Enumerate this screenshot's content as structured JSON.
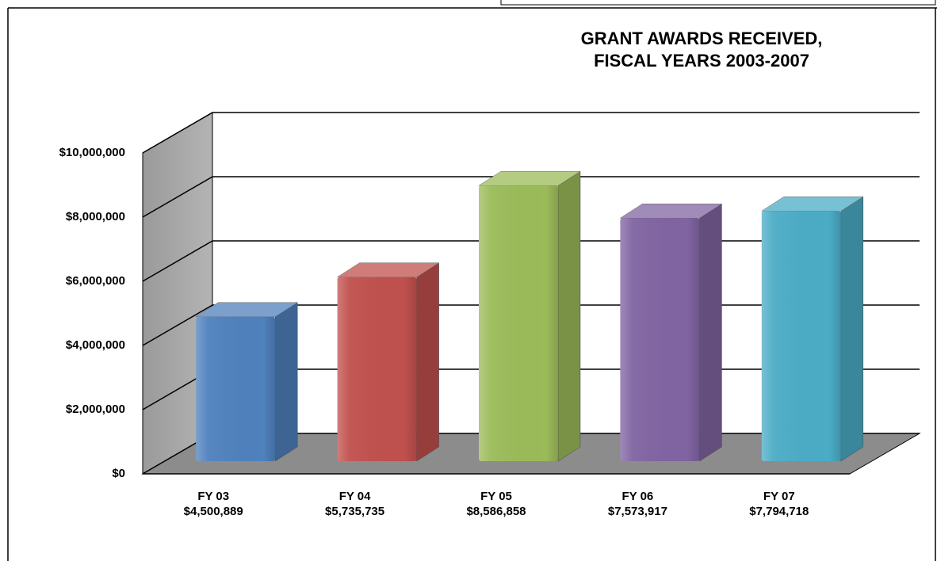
{
  "chart_data": {
    "type": "bar3d",
    "title": "GRANT AWARDS RECEIVED,",
    "subtitle": "FISCAL YEARS 2003-2007",
    "categories": [
      "FY 03",
      "FY 04",
      "FY 05",
      "FY 06",
      "FY 07"
    ],
    "values": [
      4500889,
      5735735,
      8586858,
      7573917,
      7794718
    ],
    "value_labels": [
      "$4,500,889",
      "$5,735,735",
      "$8,586,858",
      "$7,573,917",
      "$7,794,718"
    ],
    "colors": [
      "#4f81bd",
      "#c0504d",
      "#9bbb59",
      "#8064a2",
      "#4bacc6"
    ],
    "ylim": [
      0,
      10000000
    ],
    "yticks": [
      {
        "value": 0,
        "label": "$0"
      },
      {
        "value": 2000000,
        "label": "$2,000,000"
      },
      {
        "value": 4000000,
        "label": "$4,000,000"
      },
      {
        "value": 6000000,
        "label": "$6,000,000"
      },
      {
        "value": 8000000,
        "label": "$8,000,000"
      },
      {
        "value": 10000000,
        "label": "$10,000,000"
      }
    ],
    "grid": true
  }
}
